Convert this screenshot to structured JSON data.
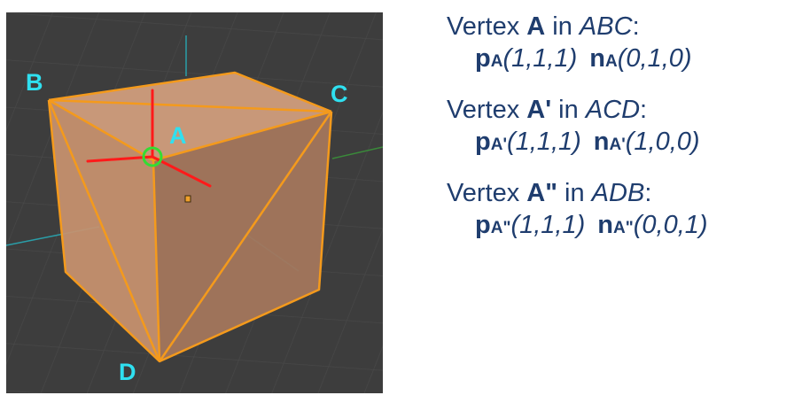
{
  "colors": {
    "background": "#3d3d3d",
    "cube_face_light": "#d4a07e",
    "cube_face_dark": "#a3765c",
    "edge": "#f49a1c",
    "label": "#2fe0f0",
    "text": "#1f3d6e",
    "axis_red": "#ff1a1a",
    "selection_green": "#33dd33"
  },
  "viewport": {
    "vertex_labels": {
      "a": "A",
      "b": "B",
      "c": "C",
      "d": "D"
    },
    "icons": [
      "origin-dot-icon",
      "selected-vertex-circle-icon",
      "transform-gizmo-icon"
    ]
  },
  "info": {
    "blocks": [
      {
        "prefix": "Vertex ",
        "vertex": "A",
        "in_word": " in ",
        "triangle": "ABC",
        "colon": ":",
        "p_letter": "p",
        "p_sub": "A",
        "p_value": "(1,1,1)",
        "n_letter": "n",
        "n_sub": "A",
        "n_value": "(0,1,0)"
      },
      {
        "prefix": "Vertex ",
        "vertex": "A'",
        "in_word": " in ",
        "triangle": "ACD",
        "colon": ":",
        "p_letter": "p",
        "p_sub": "A'",
        "p_value": "(1,1,1)",
        "n_letter": "n",
        "n_sub": "A'",
        "n_value": "(1,0,0)"
      },
      {
        "prefix": "Vertex ",
        "vertex": "A\"",
        "in_word": " in ",
        "triangle": "ADB",
        "colon": ":",
        "p_letter": "p",
        "p_sub": "A\"",
        "p_value": "(1,1,1)",
        "n_letter": "n",
        "n_sub": "A\"",
        "n_value": "(0,0,1)"
      }
    ]
  }
}
